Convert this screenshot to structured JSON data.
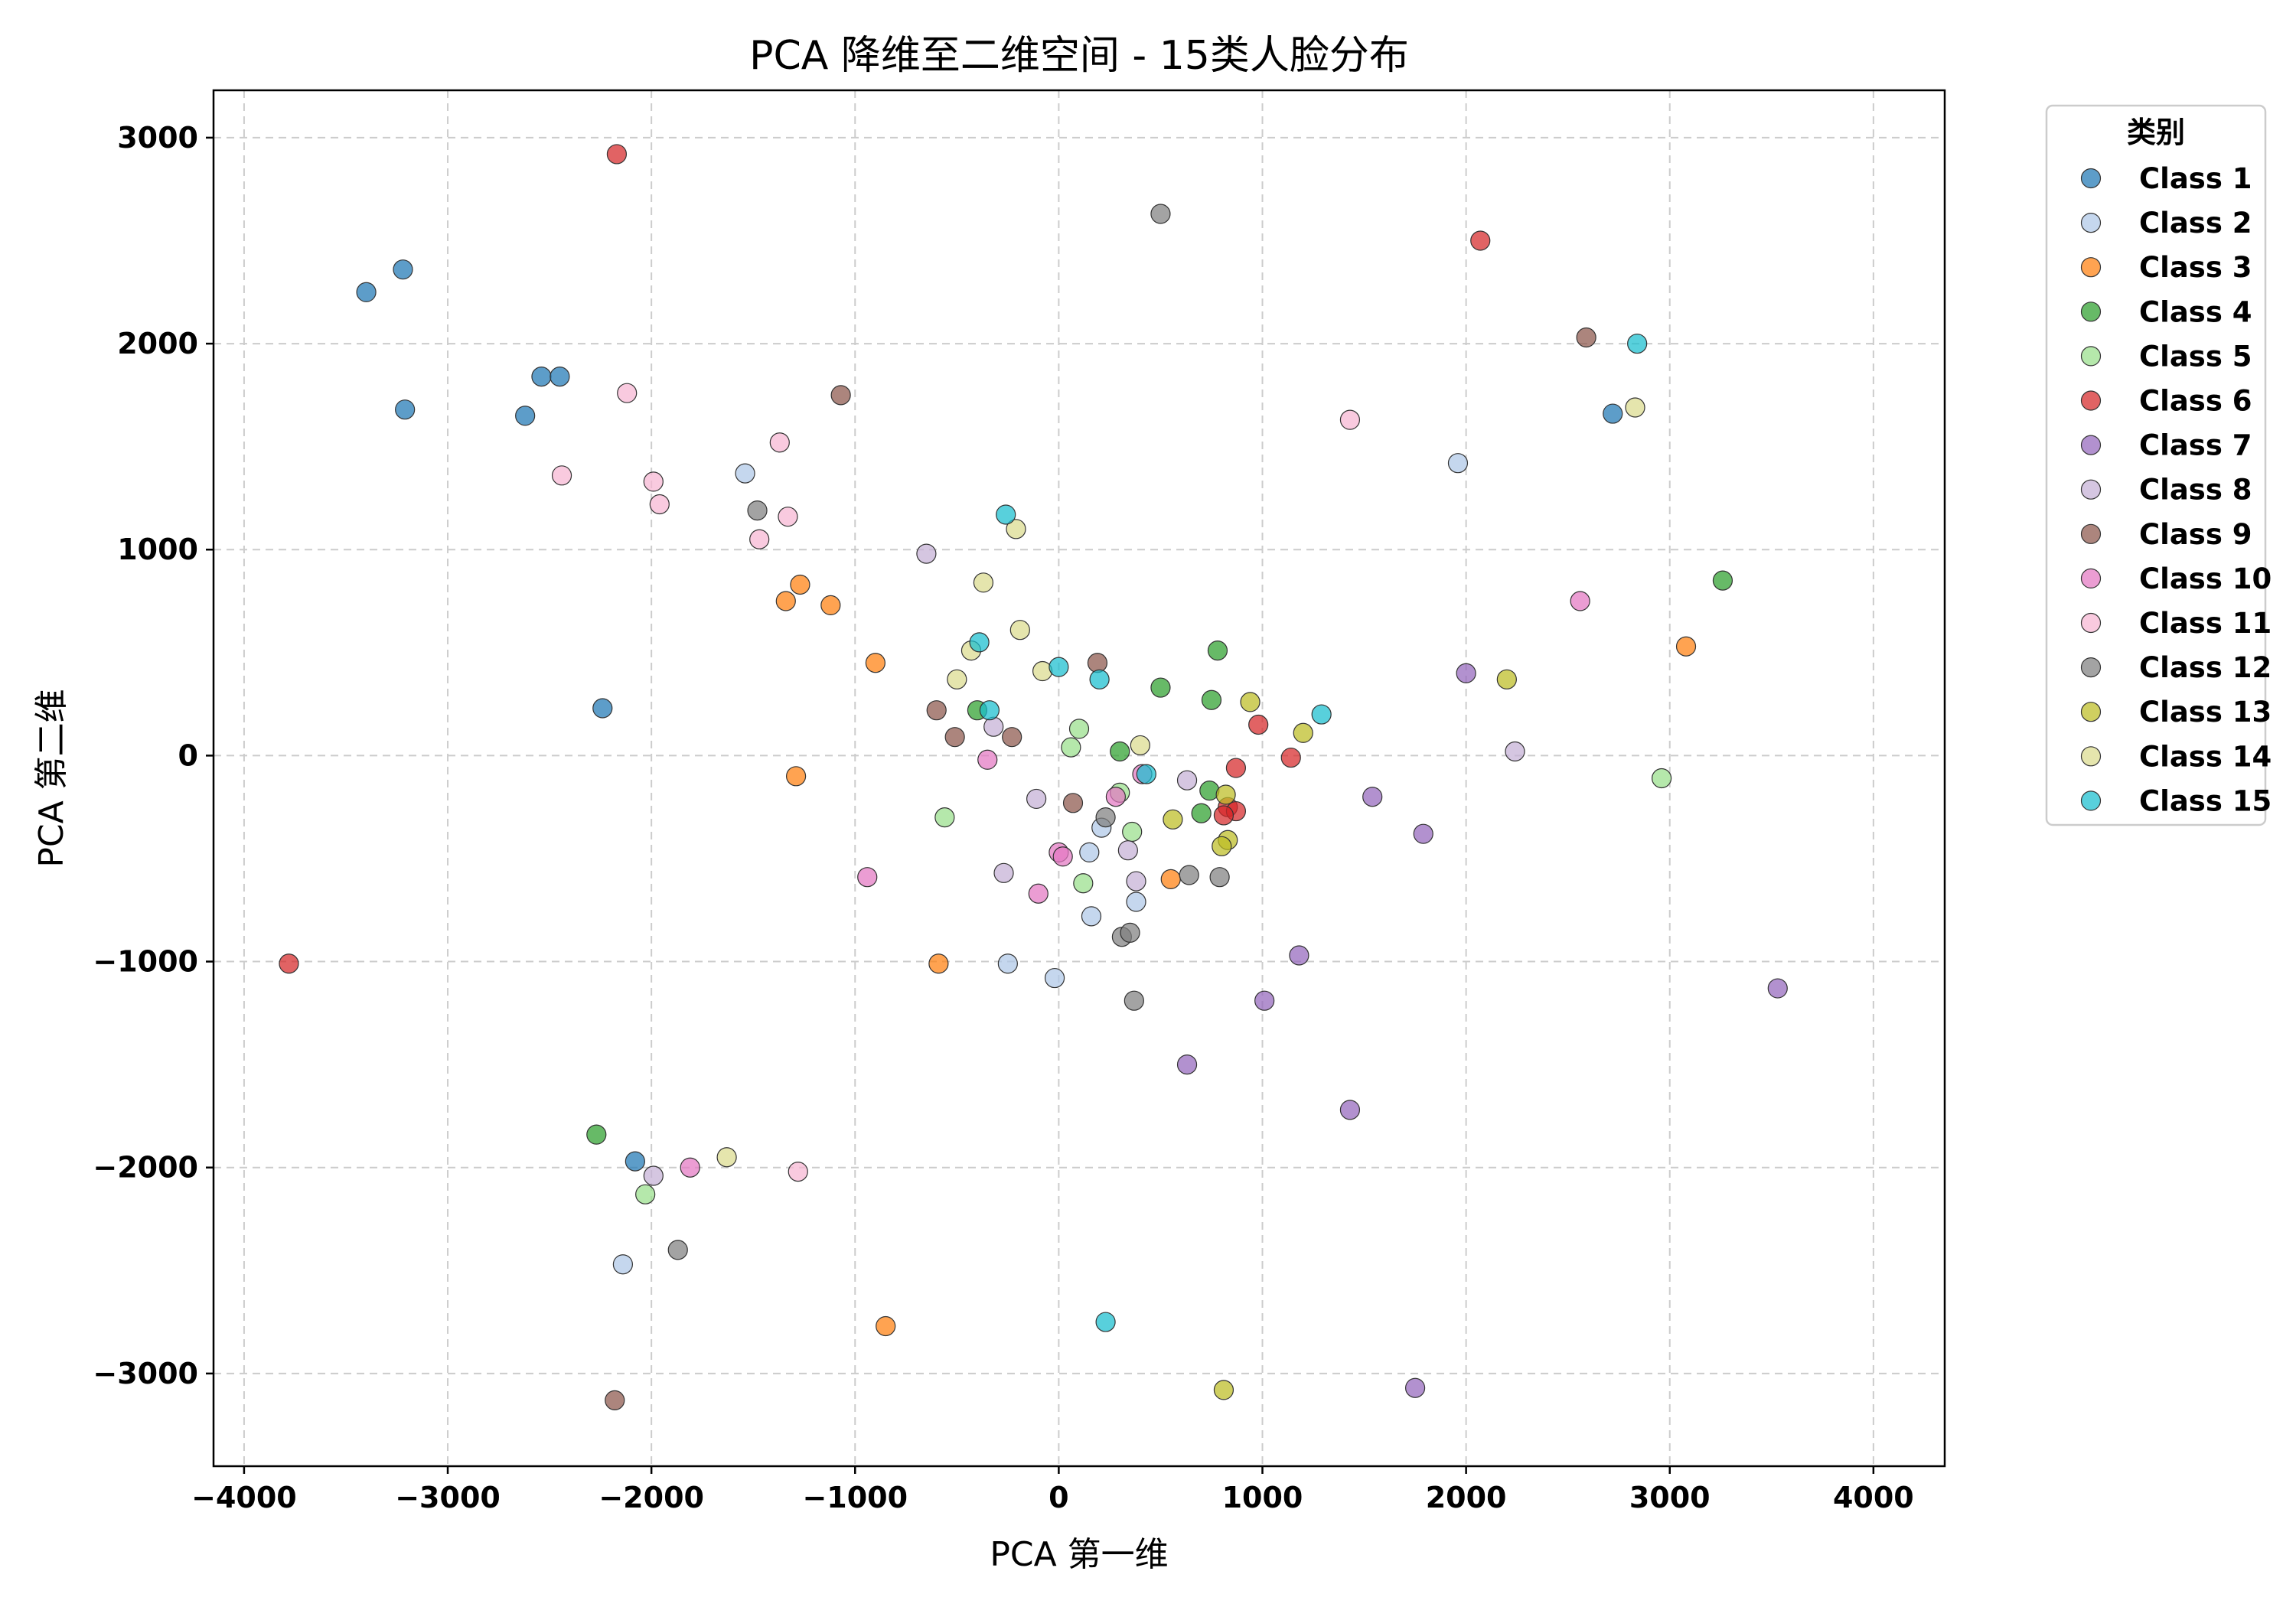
{
  "chart_data": {
    "type": "scatter",
    "title": "PCA 降维至二维空间 - 15类人脸分布",
    "xlabel": "PCA 第一维",
    "ylabel": "PCA 第二维",
    "xlim": [
      -4150,
      4350
    ],
    "ylim": [
      -3450,
      3230
    ],
    "xticks": [
      -4000,
      -3000,
      -2000,
      -1000,
      0,
      1000,
      2000,
      3000,
      4000
    ],
    "yticks": [
      -3000,
      -2000,
      -1000,
      0,
      1000,
      2000,
      3000
    ],
    "xtick_labels": [
      "−4000",
      "−3000",
      "−2000",
      "−1000",
      "0",
      "1000",
      "2000",
      "3000",
      "4000"
    ],
    "ytick_labels": [
      "−3000",
      "−2000",
      "−1000",
      "0",
      "1000",
      "2000",
      "3000"
    ],
    "grid": true,
    "legend_title": "类别",
    "legend_position": "outside-top-right",
    "series": [
      {
        "name": "Class 1",
        "color": "#1f77b4",
        "points": [
          [
            -3400,
            2250
          ],
          [
            -3220,
            2360
          ],
          [
            -3210,
            1680
          ],
          [
            -2540,
            1840
          ],
          [
            -2450,
            1840
          ],
          [
            -2620,
            1650
          ],
          [
            -2240,
            230
          ],
          [
            -2080,
            -1970
          ],
          [
            2720,
            1660
          ]
        ]
      },
      {
        "name": "Class 2",
        "color": "#aec7e8",
        "points": [
          [
            -1540,
            1370
          ],
          [
            1960,
            1420
          ],
          [
            150,
            -470
          ],
          [
            210,
            -350
          ],
          [
            160,
            -780
          ],
          [
            380,
            -710
          ],
          [
            -250,
            -1010
          ],
          [
            -20,
            -1080
          ],
          [
            -2140,
            -2470
          ]
        ]
      },
      {
        "name": "Class 3",
        "color": "#ff7f0e",
        "points": [
          [
            -1270,
            830
          ],
          [
            -1340,
            750
          ],
          [
            -1120,
            730
          ],
          [
            -900,
            450
          ],
          [
            -1290,
            -100
          ],
          [
            -590,
            -1010
          ],
          [
            550,
            -600
          ],
          [
            3080,
            530
          ],
          [
            -850,
            -2770
          ]
        ]
      },
      {
        "name": "Class 4",
        "color": "#2ca02c",
        "points": [
          [
            -2270,
            -1840
          ],
          [
            780,
            510
          ],
          [
            500,
            330
          ],
          [
            750,
            270
          ],
          [
            -400,
            220
          ],
          [
            300,
            20
          ],
          [
            740,
            -170
          ],
          [
            700,
            -280
          ],
          [
            3260,
            850
          ]
        ]
      },
      {
        "name": "Class 5",
        "color": "#98df8a",
        "points": [
          [
            -2030,
            -2130
          ],
          [
            100,
            130
          ],
          [
            60,
            40
          ],
          [
            -560,
            -300
          ],
          [
            300,
            -180
          ],
          [
            360,
            -370
          ],
          [
            120,
            -620
          ],
          [
            2960,
            -110
          ]
        ]
      },
      {
        "name": "Class 6",
        "color": "#d62728",
        "points": [
          [
            -2170,
            2920
          ],
          [
            2070,
            2500
          ],
          [
            -3780,
            -1010
          ],
          [
            980,
            150
          ],
          [
            870,
            -60
          ],
          [
            1140,
            -10
          ],
          [
            830,
            -250
          ],
          [
            870,
            -270
          ],
          [
            810,
            -290
          ]
        ]
      },
      {
        "name": "Class 7",
        "color": "#9467bd",
        "points": [
          [
            2000,
            400
          ],
          [
            1540,
            -200
          ],
          [
            1790,
            -380
          ],
          [
            1180,
            -970
          ],
          [
            1010,
            -1190
          ],
          [
            630,
            -1500
          ],
          [
            1430,
            -1720
          ],
          [
            3530,
            -1130
          ],
          [
            1750,
            -3070
          ]
        ]
      },
      {
        "name": "Class 8",
        "color": "#c5b0d5",
        "points": [
          [
            -650,
            980
          ],
          [
            -320,
            140
          ],
          [
            -110,
            -210
          ],
          [
            630,
            -120
          ],
          [
            340,
            -460
          ],
          [
            380,
            -610
          ],
          [
            -270,
            -570
          ],
          [
            2240,
            20
          ],
          [
            -1990,
            -2040
          ]
        ]
      },
      {
        "name": "Class 9",
        "color": "#8c564b",
        "points": [
          [
            -1070,
            1750
          ],
          [
            -600,
            220
          ],
          [
            -510,
            90
          ],
          [
            -230,
            90
          ],
          [
            190,
            450
          ],
          [
            70,
            -230
          ],
          [
            2590,
            2030
          ],
          [
            -2180,
            -3130
          ]
        ]
      },
      {
        "name": "Class 10",
        "color": "#e377c2",
        "points": [
          [
            -350,
            -20
          ],
          [
            -940,
            -590
          ],
          [
            0,
            -470
          ],
          [
            20,
            -490
          ],
          [
            -100,
            -670
          ],
          [
            280,
            -200
          ],
          [
            410,
            -90
          ],
          [
            2560,
            750
          ],
          [
            -1810,
            -2000
          ]
        ]
      },
      {
        "name": "Class 11",
        "color": "#f7b6d2",
        "points": [
          [
            -2120,
            1760
          ],
          [
            -2440,
            1360
          ],
          [
            -1370,
            1520
          ],
          [
            -1330,
            1160
          ],
          [
            -1470,
            1050
          ],
          [
            -1990,
            1330
          ],
          [
            -1960,
            1220
          ],
          [
            1430,
            1630
          ],
          [
            -1280,
            -2020
          ]
        ]
      },
      {
        "name": "Class 12",
        "color": "#7f7f7f",
        "points": [
          [
            500,
            2630
          ],
          [
            -1480,
            1190
          ],
          [
            230,
            -300
          ],
          [
            640,
            -580
          ],
          [
            790,
            -590
          ],
          [
            310,
            -880
          ],
          [
            350,
            -860
          ],
          [
            370,
            -1190
          ],
          [
            -1870,
            -2400
          ]
        ]
      },
      {
        "name": "Class 13",
        "color": "#bcbd22",
        "points": [
          [
            940,
            260
          ],
          [
            1200,
            110
          ],
          [
            2200,
            370
          ],
          [
            560,
            -310
          ],
          [
            820,
            -190
          ],
          [
            830,
            -410
          ],
          [
            800,
            -440
          ],
          [
            810,
            -3080
          ]
        ]
      },
      {
        "name": "Class 14",
        "color": "#dbdb8d",
        "points": [
          [
            -370,
            840
          ],
          [
            -210,
            1100
          ],
          [
            -190,
            610
          ],
          [
            -430,
            510
          ],
          [
            -500,
            370
          ],
          [
            -80,
            410
          ],
          [
            400,
            50
          ],
          [
            2830,
            1690
          ],
          [
            -1630,
            -1950
          ]
        ]
      },
      {
        "name": "Class 15",
        "color": "#17becf",
        "points": [
          [
            -260,
            1170
          ],
          [
            -390,
            550
          ],
          [
            -340,
            220
          ],
          [
            0,
            430
          ],
          [
            200,
            370
          ],
          [
            430,
            -90
          ],
          [
            1290,
            200
          ],
          [
            2840,
            2000
          ],
          [
            230,
            -2750
          ]
        ]
      }
    ]
  }
}
